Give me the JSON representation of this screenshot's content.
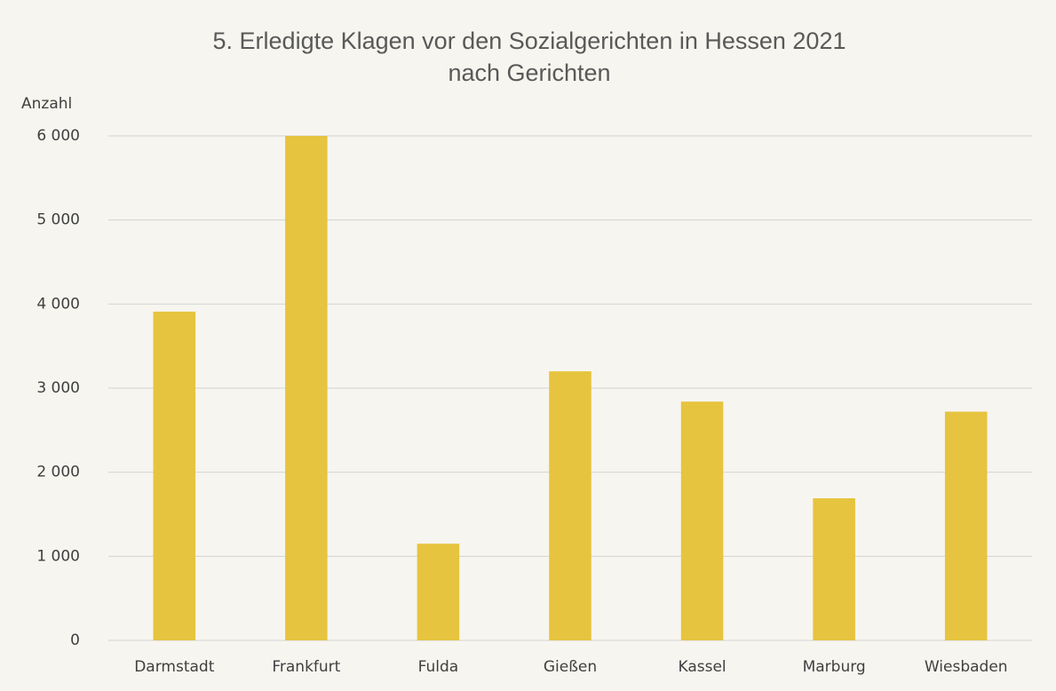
{
  "chart_data": {
    "type": "bar",
    "title": "5. Erledigte Klagen vor den Sozialgerichten in Hessen 2021",
    "subtitle": "nach Gerichten",
    "y_label": "Anzahl",
    "categories": [
      "Darmstadt",
      "Frankfurt",
      "Fulda",
      "Gießen",
      "Kassel",
      "Marburg",
      "Wiesbaden"
    ],
    "values": [
      3910,
      6000,
      1150,
      3200,
      2840,
      1690,
      2720
    ],
    "color": "#e6c43f",
    "ylim": [
      0,
      6000
    ],
    "yticks": [
      0,
      {
        "value": 1000,
        "label": "1 000"
      },
      {
        "value": 2000,
        "label": "2 000"
      },
      {
        "value": 3000,
        "label": "3 000"
      },
      {
        "value": 4000,
        "label": "4 000"
      },
      {
        "value": 5000,
        "label": "5 000"
      },
      {
        "value": 6000,
        "label": "6 000"
      }
    ],
    "grid": true
  }
}
